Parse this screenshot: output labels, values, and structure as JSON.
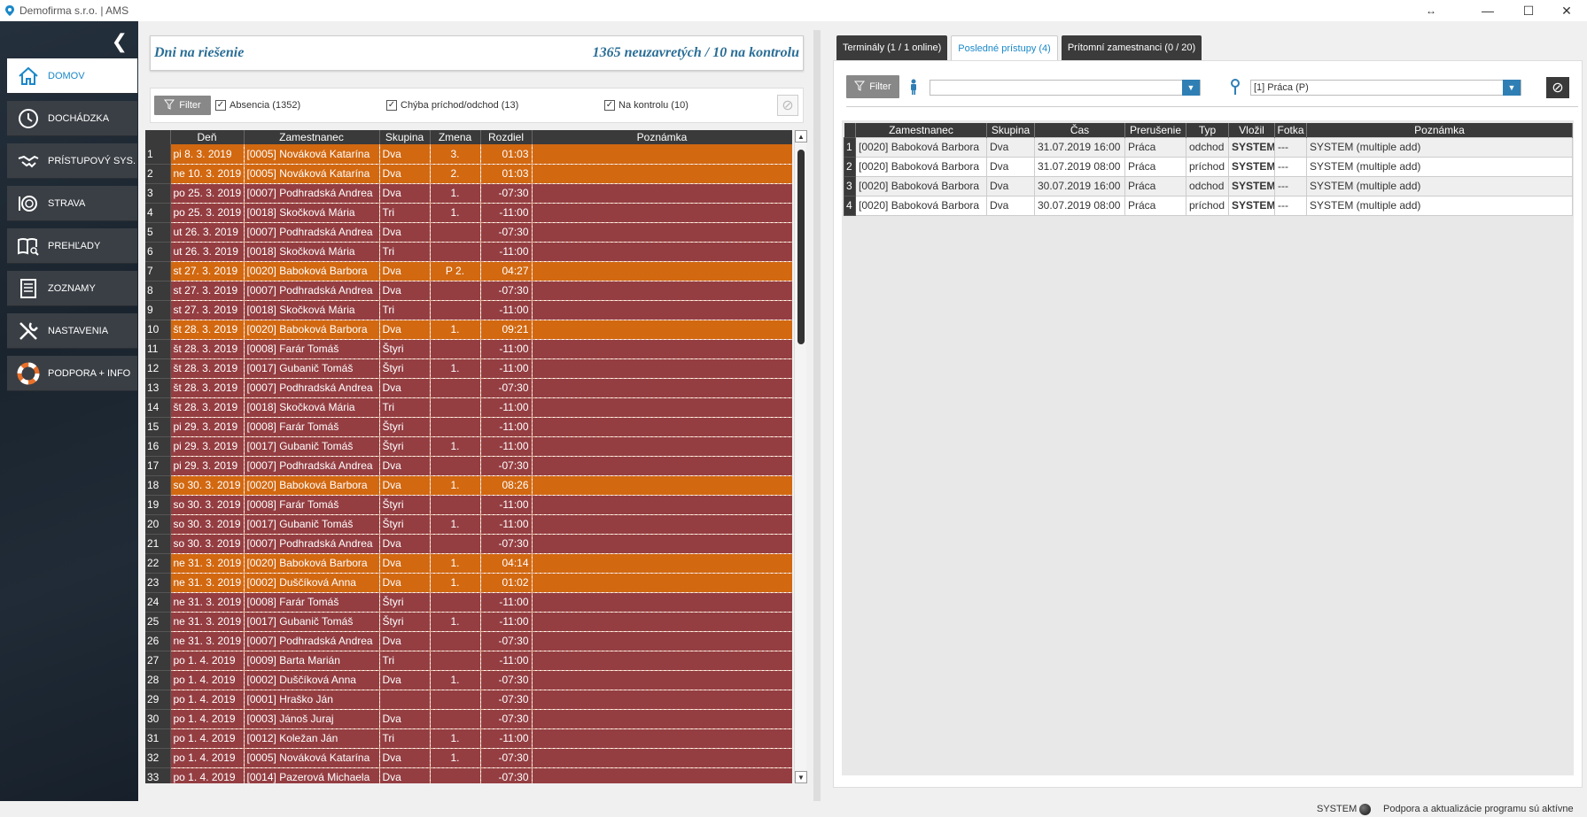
{
  "window": {
    "title": "Demofirma s.r.o. | AMS",
    "minimize": "—",
    "maximize": "☐",
    "close": "✕",
    "resize_indicator": "↔"
  },
  "sidebar": {
    "collapse_glyph": "❮",
    "items": [
      {
        "label": "DOMOV",
        "icon": "home-icon"
      },
      {
        "label": "DOCHÁDZKA",
        "icon": "clock-icon"
      },
      {
        "label": "PRÍSTUPOVÝ SYS.",
        "icon": "handshake-icon"
      },
      {
        "label": "STRAVA",
        "icon": "plate-icon"
      },
      {
        "label": "PREHĽADY",
        "icon": "book-search-icon"
      },
      {
        "label": "ZOZNAMY",
        "icon": "list-icon"
      },
      {
        "label": "NASTAVENIA",
        "icon": "tools-icon"
      },
      {
        "label": "PODPORA + INFO",
        "icon": "lifebuoy-icon"
      }
    ]
  },
  "left": {
    "header_title": "Dni na riešenie",
    "header_summary": "1365 neuzavretých / 10 na kontrolu",
    "filter_label": "Filter",
    "checks": [
      {
        "label": "Absencia (1352)",
        "checked": true
      },
      {
        "label": "Chýba príchod/odchod (13)",
        "checked": true
      },
      {
        "label": "Na kontrolu (10)",
        "checked": true
      }
    ],
    "columns": [
      "",
      "Deň",
      "Zamestnanec",
      "Skupina",
      "Zmena",
      "Rozdiel",
      "Poznámka"
    ],
    "rows": [
      [
        "1",
        "pi 8. 3. 2019",
        "[0005] Nováková Katarína",
        "Dva",
        "3.",
        "01:03",
        "",
        "orange"
      ],
      [
        "2",
        "ne 10. 3. 2019",
        "[0005] Nováková Katarína",
        "Dva",
        "2.",
        "01:03",
        "",
        "orange"
      ],
      [
        "3",
        "po 25. 3. 2019",
        "[0007] Podhradská Andrea",
        "Dva",
        "1.",
        "-07:30",
        "",
        "red"
      ],
      [
        "4",
        "po 25. 3. 2019",
        "[0018] Skočková Mária",
        "Tri",
        "1.",
        "-11:00",
        "",
        "red"
      ],
      [
        "5",
        "ut 26. 3. 2019",
        "[0007] Podhradská Andrea",
        "Dva",
        "",
        "-07:30",
        "",
        "red"
      ],
      [
        "6",
        "ut 26. 3. 2019",
        "[0018] Skočková Mária",
        "Tri",
        "",
        "-11:00",
        "",
        "red"
      ],
      [
        "7",
        "st 27. 3. 2019",
        "[0020] Baboková Barbora",
        "Dva",
        "P 2.",
        "04:27",
        "",
        "orange"
      ],
      [
        "8",
        "st 27. 3. 2019",
        "[0007] Podhradská Andrea",
        "Dva",
        "",
        "-07:30",
        "",
        "red"
      ],
      [
        "9",
        "st 27. 3. 2019",
        "[0018] Skočková Mária",
        "Tri",
        "",
        "-11:00",
        "",
        "red"
      ],
      [
        "10",
        "št 28. 3. 2019",
        "[0020] Baboková Barbora",
        "Dva",
        "1.",
        "09:21",
        "",
        "orange"
      ],
      [
        "11",
        "št 28. 3. 2019",
        "[0008] Farár Tomáš",
        "Štyri",
        "",
        "-11:00",
        "",
        "red"
      ],
      [
        "12",
        "št 28. 3. 2019",
        "[0017] Gubanič Tomáš",
        "Štyri",
        "1.",
        "-11:00",
        "",
        "red"
      ],
      [
        "13",
        "št 28. 3. 2019",
        "[0007] Podhradská Andrea",
        "Dva",
        "",
        "-07:30",
        "",
        "red"
      ],
      [
        "14",
        "št 28. 3. 2019",
        "[0018] Skočková Mária",
        "Tri",
        "",
        "-11:00",
        "",
        "red"
      ],
      [
        "15",
        "pi 29. 3. 2019",
        "[0008] Farár Tomáš",
        "Štyri",
        "",
        "-11:00",
        "",
        "red"
      ],
      [
        "16",
        "pi 29. 3. 2019",
        "[0017] Gubanič Tomáš",
        "Štyri",
        "1.",
        "-11:00",
        "",
        "red"
      ],
      [
        "17",
        "pi 29. 3. 2019",
        "[0007] Podhradská Andrea",
        "Dva",
        "",
        "-07:30",
        "",
        "red"
      ],
      [
        "18",
        "so 30. 3. 2019",
        "[0020] Baboková Barbora",
        "Dva",
        "1.",
        "08:26",
        "",
        "orange"
      ],
      [
        "19",
        "so 30. 3. 2019",
        "[0008] Farár Tomáš",
        "Štyri",
        "",
        "-11:00",
        "",
        "red"
      ],
      [
        "20",
        "so 30. 3. 2019",
        "[0017] Gubanič Tomáš",
        "Štyri",
        "1.",
        "-11:00",
        "",
        "red"
      ],
      [
        "21",
        "so 30. 3. 2019",
        "[0007] Podhradská Andrea",
        "Dva",
        "",
        "-07:30",
        "",
        "red"
      ],
      [
        "22",
        "ne 31. 3. 2019",
        "[0020] Baboková Barbora",
        "Dva",
        "1.",
        "04:14",
        "",
        "orange"
      ],
      [
        "23",
        "ne 31. 3. 2019",
        "[0002] Duščíková Anna",
        "Dva",
        "1.",
        "01:02",
        "",
        "orange"
      ],
      [
        "24",
        "ne 31. 3. 2019",
        "[0008] Farár Tomáš",
        "Štyri",
        "",
        "-11:00",
        "",
        "red"
      ],
      [
        "25",
        "ne 31. 3. 2019",
        "[0017] Gubanič Tomáš",
        "Štyri",
        "1.",
        "-11:00",
        "",
        "red"
      ],
      [
        "26",
        "ne 31. 3. 2019",
        "[0007] Podhradská Andrea",
        "Dva",
        "",
        "-07:30",
        "",
        "red"
      ],
      [
        "27",
        "po 1. 4. 2019",
        "[0009] Barta Marián",
        "Tri",
        "",
        "-11:00",
        "",
        "red"
      ],
      [
        "28",
        "po 1. 4. 2019",
        "[0002] Duščíková Anna",
        "Dva",
        "1.",
        "-07:30",
        "",
        "red"
      ],
      [
        "29",
        "po 1. 4. 2019",
        "[0001] Hraško Ján",
        "",
        "",
        "-07:30",
        "",
        "red"
      ],
      [
        "30",
        "po 1. 4. 2019",
        "[0003] Jánoš Juraj",
        "Dva",
        "",
        "-07:30",
        "",
        "red"
      ],
      [
        "31",
        "po 1. 4. 2019",
        "[0012] Koležan Ján",
        "Tri",
        "1.",
        "-11:00",
        "",
        "red"
      ],
      [
        "32",
        "po 1. 4. 2019",
        "[0005] Nováková Katarína",
        "Dva",
        "1.",
        "-07:30",
        "",
        "red"
      ],
      [
        "33",
        "po 1. 4. 2019",
        "[0014] Pazerová Michaela",
        "Dva",
        "",
        "-07:30",
        "",
        "red"
      ]
    ]
  },
  "right": {
    "tabs": [
      {
        "label": "Terminály (1 / 1 online)",
        "active": false
      },
      {
        "label": "Posledné prístupy (4)",
        "active": true
      },
      {
        "label": "Prítomní zamestnanci (0 / 20)",
        "active": false
      }
    ],
    "filter_label": "Filter",
    "employee_select_value": "",
    "location_select_value": "[1] Práca (P)",
    "columns": [
      "",
      "Zamestnanec",
      "Skupina",
      "Čas",
      "Prerušenie",
      "Typ",
      "Vložil",
      "Fotka",
      "Poznámka"
    ],
    "rows": [
      [
        "1",
        "[0020] Baboková Barbora",
        "Dva",
        "31.07.2019 16:00",
        "Práca",
        "odchod",
        "SYSTEM",
        "---",
        "SYSTEM (multiple add)"
      ],
      [
        "2",
        "[0020] Baboková Barbora",
        "Dva",
        "31.07.2019 08:00",
        "Práca",
        "príchod",
        "SYSTEM",
        "---",
        "SYSTEM (multiple add)"
      ],
      [
        "3",
        "[0020] Baboková Barbora",
        "Dva",
        "30.07.2019 16:00",
        "Práca",
        "odchod",
        "SYSTEM",
        "---",
        "SYSTEM (multiple add)"
      ],
      [
        "4",
        "[0020] Baboková Barbora",
        "Dva",
        "30.07.2019 08:00",
        "Práca",
        "príchod",
        "SYSTEM",
        "---",
        "SYSTEM (multiple add)"
      ]
    ]
  },
  "status": {
    "user": "SYSTEM",
    "message": "Podpora a aktualizácie programu sú aktívne"
  },
  "colors": {
    "accent": "#1a88c9",
    "row_red": "#943e42",
    "row_orange": "#d26810",
    "sidebar_bg": "#1f2a35"
  }
}
